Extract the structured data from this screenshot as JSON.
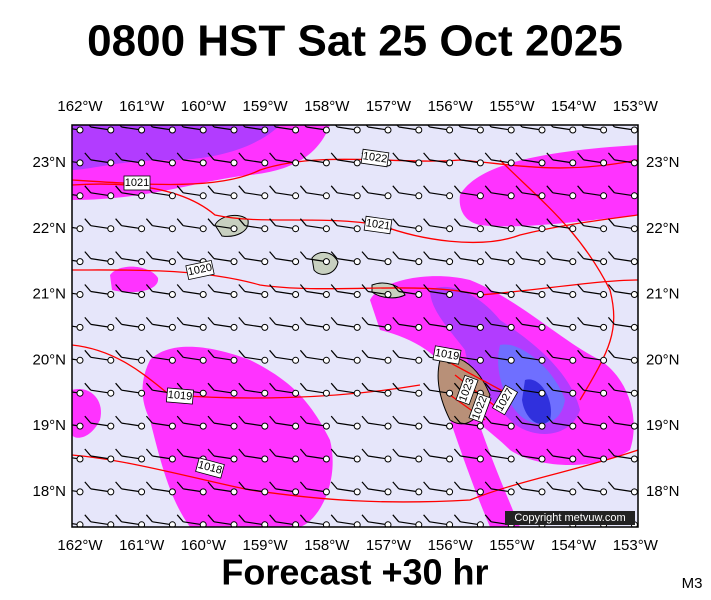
{
  "header": {
    "title": "0800 HST Sat 25 Oct 2025"
  },
  "footer": {
    "forecast": "Forecast +30 hr",
    "model": "M3",
    "copyright": "Copyright metvuw.com"
  },
  "axes": {
    "longitude_labels": [
      "162°W",
      "161°W",
      "160°W",
      "159°W",
      "158°W",
      "157°W",
      "156°W",
      "155°W",
      "154°W",
      "153°W"
    ],
    "latitude_labels": [
      "23°N",
      "22°N",
      "21°N",
      "20°N",
      "19°N",
      "18°N"
    ]
  },
  "isobar_labels": [
    "1022",
    "1021",
    "1021",
    "1020",
    "1019",
    "1018",
    "1019",
    "1023",
    "1022",
    "1027"
  ]
}
